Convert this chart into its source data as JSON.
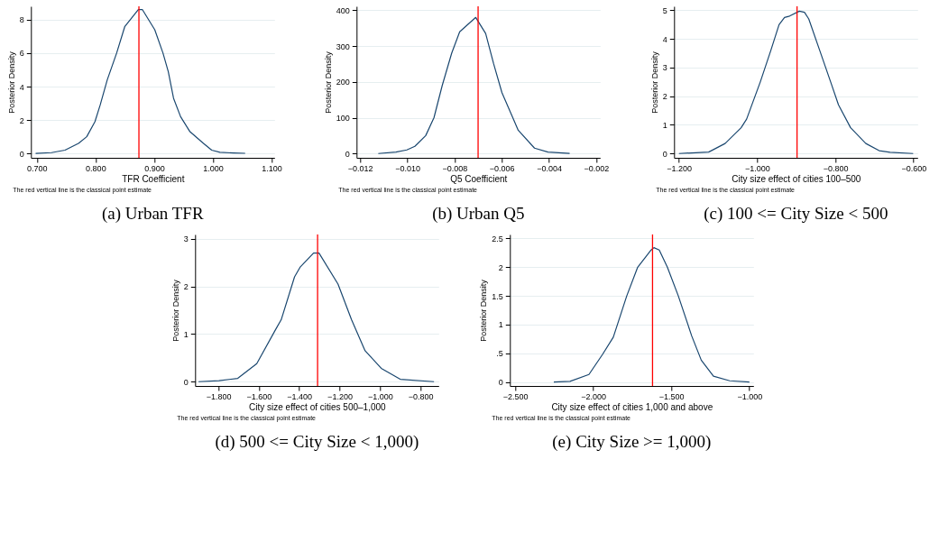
{
  "chart_data": [
    {
      "type": "line",
      "title": "(a)  Urban TFR",
      "xlabel": "TFR Coefficient",
      "ylabel": "Posterior Density",
      "annotations": [
        "The red vertical line is the classical point estimate"
      ],
      "xlim": [
        0.69,
        1.105
      ],
      "ylim": [
        -0.26,
        8.8
      ],
      "xticks": [
        {
          "value": 0.7,
          "label": "0.700"
        },
        {
          "value": 0.8,
          "label": "0.800"
        },
        {
          "value": 0.9,
          "label": "0.900"
        },
        {
          "value": 1.0,
          "label": "1.000"
        },
        {
          "value": 1.1,
          "label": "1.100"
        }
      ],
      "yticks": [
        0,
        2,
        4,
        6,
        8
      ],
      "grid": "y",
      "series": [
        {
          "color": "#1a476f",
          "x": [
            0.698,
            0.725,
            0.748,
            0.771,
            0.785,
            0.799,
            0.808,
            0.82,
            0.836,
            0.85,
            0.873,
            0.88,
            0.901,
            0.915,
            0.924,
            0.933,
            0.945,
            0.961,
            0.984,
            0.998,
            1.012,
            1.035,
            1.055
          ],
          "values": [
            0,
            0.05,
            0.2,
            0.6,
            1.0,
            1.9,
            2.9,
            4.4,
            6.0,
            7.6,
            8.6,
            8.6,
            7.4,
            6.0,
            4.9,
            3.3,
            2.2,
            1.3,
            0.6,
            0.2,
            0.07,
            0.03,
            0.01
          ]
        }
      ],
      "ref_lines": [
        {
          "axis": "x",
          "value": 0.874,
          "color": "#ff0000"
        }
      ]
    },
    {
      "type": "line",
      "title": "(b)  Urban Q5",
      "xlabel": "Q5 Coefficient",
      "ylabel": "Posterior Density",
      "annotations": [
        "The red vertical line is the classical point estimate"
      ],
      "xlim": [
        -0.01215,
        -0.00183
      ],
      "ylim": [
        -12,
        411
      ],
      "xticks": [
        {
          "value": -0.012,
          "label": "−0.012"
        },
        {
          "value": -0.01,
          "label": "−0.010"
        },
        {
          "value": -0.008,
          "label": "−0.008"
        },
        {
          "value": -0.006,
          "label": "−0.006"
        },
        {
          "value": -0.004,
          "label": "−0.004"
        },
        {
          "value": -0.002,
          "label": "−0.002"
        }
      ],
      "yticks": [
        0,
        100,
        200,
        300,
        400
      ],
      "grid": "y",
      "series": [
        {
          "color": "#1a476f",
          "x": [
            -0.01123,
            -0.01048,
            -0.01002,
            -0.00968,
            -0.00922,
            -0.00887,
            -0.00852,
            -0.00812,
            -0.00778,
            -0.0071,
            -0.00668,
            -0.00634,
            -0.00599,
            -0.00553,
            -0.0053,
            -0.00461,
            -0.00404,
            -0.00312
          ],
          "values": [
            0,
            4,
            10,
            20,
            50,
            100,
            190,
            280,
            340,
            380,
            335,
            250,
            170,
            100,
            65,
            15,
            4,
            0.5
          ]
        }
      ],
      "ref_lines": [
        {
          "axis": "x",
          "value": -0.007,
          "color": "#ff0000"
        }
      ]
    },
    {
      "type": "line",
      "title": "(c)  100 <= City Size < 500",
      "xlabel": "City size effect of cities 100–500",
      "ylabel": "Posterior Density",
      "annotations": [
        "The red vertical line is the classical point estimate"
      ],
      "xlim": [
        -1.2125,
        -0.5896
      ],
      "ylim": [
        -0.15,
        5.14
      ],
      "xticks": [
        {
          "value": -1.2,
          "label": "−1.200"
        },
        {
          "value": -1.0,
          "label": "−1.000"
        },
        {
          "value": -0.8,
          "label": "−0.800"
        },
        {
          "value": -0.6,
          "label": "−0.600"
        }
      ],
      "yticks": [
        0,
        1,
        2,
        3,
        4,
        5
      ],
      "grid": "y",
      "series": [
        {
          "color": "#1a476f",
          "x": [
            -1.2,
            -1.124,
            -1.082,
            -1.041,
            -1.027,
            -0.992,
            -0.965,
            -0.944,
            -0.93,
            -0.917,
            -0.892,
            -0.879,
            -0.868,
            -0.84,
            -0.812,
            -0.792,
            -0.761,
            -0.722,
            -0.688,
            -0.66,
            -0.601
          ],
          "values": [
            0,
            0.05,
            0.35,
            0.9,
            1.2,
            2.5,
            3.6,
            4.5,
            4.75,
            4.8,
            4.97,
            4.93,
            4.7,
            3.6,
            2.5,
            1.7,
            0.9,
            0.35,
            0.1,
            0.04,
            0.0
          ]
        }
      ],
      "ref_lines": [
        {
          "axis": "x",
          "value": -0.898,
          "color": "#ff0000"
        }
      ]
    },
    {
      "type": "line",
      "title": "(d)  500 <= City Size < 1,000)",
      "xlabel": "City size effect of cities 500–1,000",
      "ylabel": "Posterior Density",
      "annotations": [
        "The red vertical line is the classical point estimate"
      ],
      "xlim": [
        -1.915,
        -0.71
      ],
      "ylim": [
        -0.09,
        3.09
      ],
      "xticks": [
        {
          "value": -1.8,
          "label": "−1.800"
        },
        {
          "value": -1.6,
          "label": "−1.600"
        },
        {
          "value": -1.4,
          "label": "−1.400"
        },
        {
          "value": -1.2,
          "label": "−1.200"
        },
        {
          "value": -1.0,
          "label": "−1.000"
        },
        {
          "value": -0.8,
          "label": "−0.800"
        }
      ],
      "yticks": [
        0,
        1,
        2,
        3
      ],
      "grid": "y",
      "series": [
        {
          "color": "#1a476f",
          "x": [
            -1.898,
            -1.797,
            -1.704,
            -1.61,
            -1.516,
            -1.489,
            -1.423,
            -1.396,
            -1.329,
            -1.302,
            -1.208,
            -1.141,
            -1.074,
            -0.994,
            -0.9,
            -0.733
          ],
          "values": [
            0,
            0.02,
            0.07,
            0.38,
            1.1,
            1.3,
            2.2,
            2.4,
            2.7,
            2.7,
            2.05,
            1.3,
            0.65,
            0.28,
            0.05,
            0.0
          ]
        }
      ],
      "ref_lines": [
        {
          "axis": "x",
          "value": -1.309,
          "color": "#ff0000"
        }
      ]
    },
    {
      "type": "line",
      "title": "(e)  City Size >= 1,000)",
      "xlabel": "City size effect of cities 1,000 and above",
      "ylabel": "Posterior Density",
      "annotations": [
        "The red vertical line is the classical point estimate"
      ],
      "xlim": [
        -2.533,
        -0.974
      ],
      "ylim": [
        -0.07,
        2.57
      ],
      "xticks": [
        {
          "value": -2.5,
          "label": "−2.500"
        },
        {
          "value": -2.0,
          "label": "−2.000"
        },
        {
          "value": -1.5,
          "label": "−1.500"
        },
        {
          "value": -1.0,
          "label": "−1.000"
        }
      ],
      "yticks": [
        0,
        {
          "value": 0.5,
          "label": ".5"
        },
        1,
        1.5,
        2,
        2.5
      ],
      "grid": "y",
      "series": [
        {
          "color": "#1a476f",
          "x": [
            -2.252,
            -2.148,
            -2.027,
            -1.94,
            -1.871,
            -1.785,
            -1.715,
            -1.629,
            -1.611,
            -1.577,
            -1.525,
            -1.455,
            -1.369,
            -1.308,
            -1.23,
            -1.126,
            -1.0
          ],
          "values": [
            0,
            0.01,
            0.13,
            0.48,
            0.78,
            1.5,
            2.0,
            2.3,
            2.34,
            2.3,
            2.0,
            1.5,
            0.8,
            0.38,
            0.1,
            0.02,
            0
          ]
        }
      ],
      "ref_lines": [
        {
          "axis": "x",
          "value": -1.62,
          "color": "#ff0000"
        }
      ]
    }
  ]
}
